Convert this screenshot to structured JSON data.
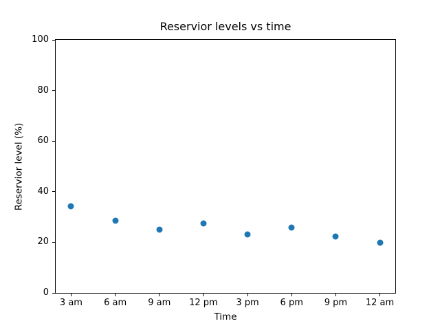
{
  "chart_data": {
    "type": "scatter",
    "title": "Reservior levels vs time",
    "xlabel": "Time",
    "ylabel": "Reservior level (%)",
    "categories": [
      "3 am",
      "6 am",
      "9 am",
      "12 pm",
      "3 pm",
      "6 pm",
      "9 pm",
      "12 am"
    ],
    "values": [
      34.3,
      28.5,
      25.0,
      27.5,
      23.2,
      25.8,
      22.2,
      19.8
    ],
    "ylim": [
      0,
      100
    ],
    "yticks": [
      0,
      20,
      40,
      60,
      80,
      100
    ],
    "grid": false,
    "legend": "none",
    "marker_color": "#1f77b4",
    "axis_color": "#000000",
    "background_color": "#ffffff"
  }
}
